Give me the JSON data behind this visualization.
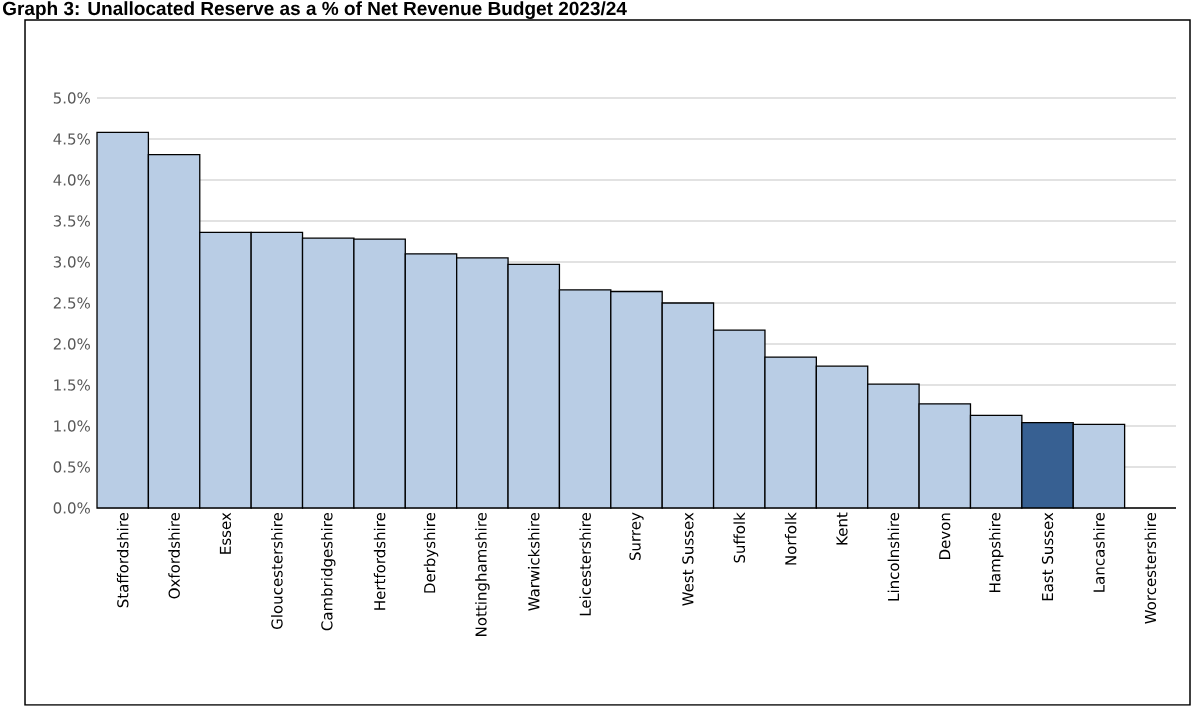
{
  "chart_data": {
    "type": "bar",
    "title": "Graph 3: Unallocated Reserve as a % of Net Revenue Budget 2023/24",
    "categories": [
      "Staffordshire",
      "Oxfordshire",
      "Essex",
      "Gloucestershire",
      "Cambridgeshire",
      "Hertfordshire",
      "Derbyshire",
      "Nottinghamshire",
      "Warwickshire",
      "Leicestershire",
      "Surrey",
      "West Sussex",
      "Suffolk",
      "Norfolk",
      "Kent",
      "Lincolnshire",
      "Devon",
      "Hampshire",
      "East Sussex",
      "Lancashire",
      "Worcestershire"
    ],
    "values": [
      4.58,
      4.31,
      3.36,
      3.36,
      3.29,
      3.28,
      3.1,
      3.05,
      2.97,
      2.66,
      2.64,
      2.5,
      2.17,
      1.84,
      1.73,
      1.51,
      1.27,
      1.13,
      1.04,
      1.02,
      0
    ],
    "colors": [
      "#b9cde5",
      "#b9cde5",
      "#b9cde5",
      "#b9cde5",
      "#b9cde5",
      "#b9cde5",
      "#b9cde5",
      "#b9cde5",
      "#b9cde5",
      "#b9cde5",
      "#b9cde5",
      "#b9cde5",
      "#b9cde5",
      "#b9cde5",
      "#b9cde5",
      "#b9cde5",
      "#b9cde5",
      "#b9cde5",
      "#376092",
      "#b9cde5",
      "#b9cde5"
    ],
    "ylim": [
      0,
      5
    ],
    "yticks": [
      {
        "value": 0,
        "label": "0.0%"
      },
      {
        "value": 0.5,
        "label": "0.5%"
      },
      {
        "value": 1,
        "label": "1.0%"
      },
      {
        "value": 1.5,
        "label": "1.5%"
      },
      {
        "value": 2,
        "label": "2.0%"
      },
      {
        "value": 2.5,
        "label": "2.5%"
      },
      {
        "value": 3,
        "label": "3.0%"
      },
      {
        "value": 3.5,
        "label": "3.5%"
      },
      {
        "value": 4,
        "label": "4.0%"
      },
      {
        "value": 4.5,
        "label": "4.5%"
      },
      {
        "value": 5,
        "label": "5.0%"
      }
    ],
    "grid": "y"
  }
}
